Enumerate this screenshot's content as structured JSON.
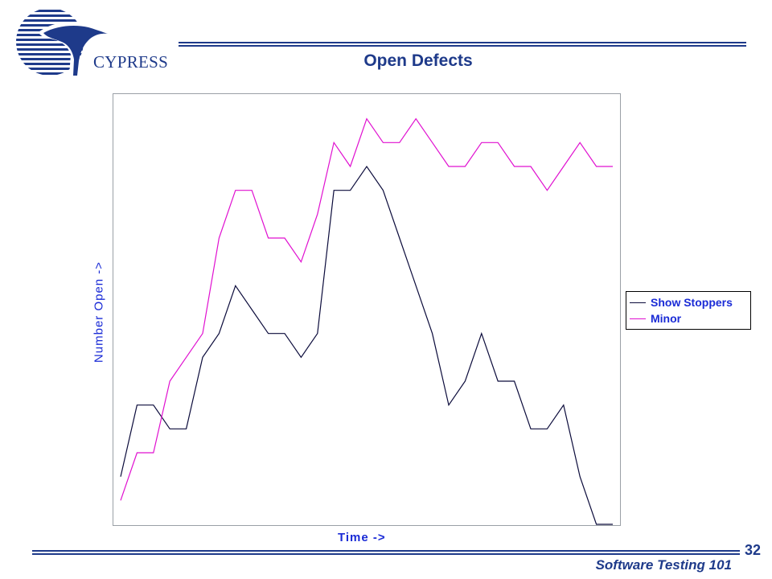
{
  "header": {
    "logo_text": "CYPRESS",
    "title": "Open Defects"
  },
  "footer": {
    "page_number": "32",
    "course": "Software Testing 101"
  },
  "colors": {
    "accent": "#1e3a8a",
    "label": "#1a2bd6",
    "show_stoppers": "#0b0b3b",
    "minor": "#e010d0"
  },
  "chart_data": {
    "type": "line",
    "title": "Open Defects",
    "xlabel": "Time ->",
    "ylabel": "Number Open ->",
    "grid": false,
    "legend": "right",
    "xlim": [
      0,
      30
    ],
    "ylim": [
      0,
      18
    ],
    "x": [
      0,
      1,
      2,
      3,
      4,
      5,
      6,
      7,
      8,
      9,
      10,
      11,
      12,
      13,
      14,
      15,
      16,
      17,
      18,
      19,
      20,
      21,
      22,
      23,
      24,
      25,
      26,
      27,
      28,
      29,
      30
    ],
    "series": [
      {
        "name": "Show Stoppers",
        "values": [
          2,
          5,
          5,
          4,
          4,
          7,
          8,
          10,
          9,
          8,
          8,
          7,
          8,
          14,
          14,
          15,
          14,
          12,
          10,
          8,
          5,
          6,
          8,
          6,
          6,
          4,
          4,
          5,
          2,
          0,
          0
        ]
      },
      {
        "name": "Minor",
        "values": [
          1,
          3,
          3,
          6,
          7,
          8,
          12,
          14,
          14,
          12,
          12,
          11,
          13,
          16,
          15,
          17,
          16,
          16,
          17,
          16,
          15,
          15,
          16,
          16,
          15,
          15,
          14,
          15,
          16,
          15,
          15
        ]
      }
    ]
  }
}
